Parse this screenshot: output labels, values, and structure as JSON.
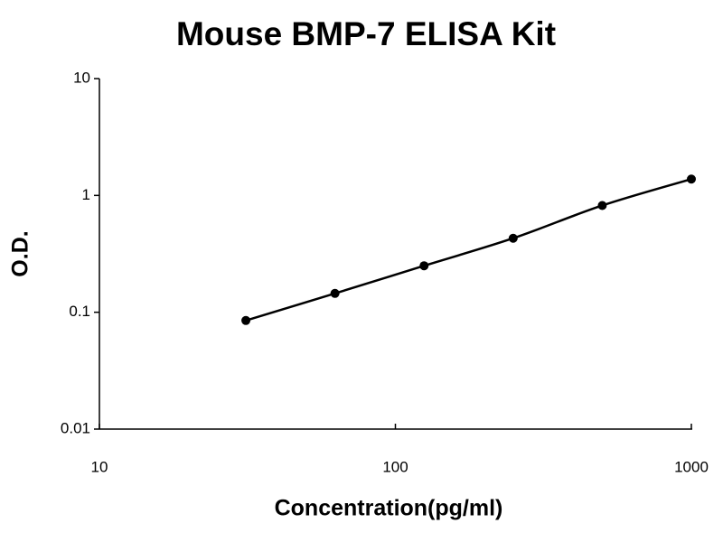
{
  "chart_data": {
    "type": "scatter",
    "title": "Mouse BMP-7 ELISA Kit",
    "x_label": "Concentration(pg/ml)",
    "y_label": "O.D.",
    "x": [
      31.25,
      62.5,
      125,
      250,
      500,
      1000
    ],
    "values": [
      0.085,
      0.145,
      0.25,
      0.43,
      0.82,
      1.38
    ],
    "color": "#000000",
    "fit_line": true,
    "xlog": true,
    "ylog": true,
    "xlim": [
      10,
      1000
    ],
    "xticks": [
      10,
      100,
      1000
    ],
    "ylim": [
      0.01,
      10
    ],
    "yticks": [
      0.01,
      0.1,
      1,
      10
    ]
  }
}
